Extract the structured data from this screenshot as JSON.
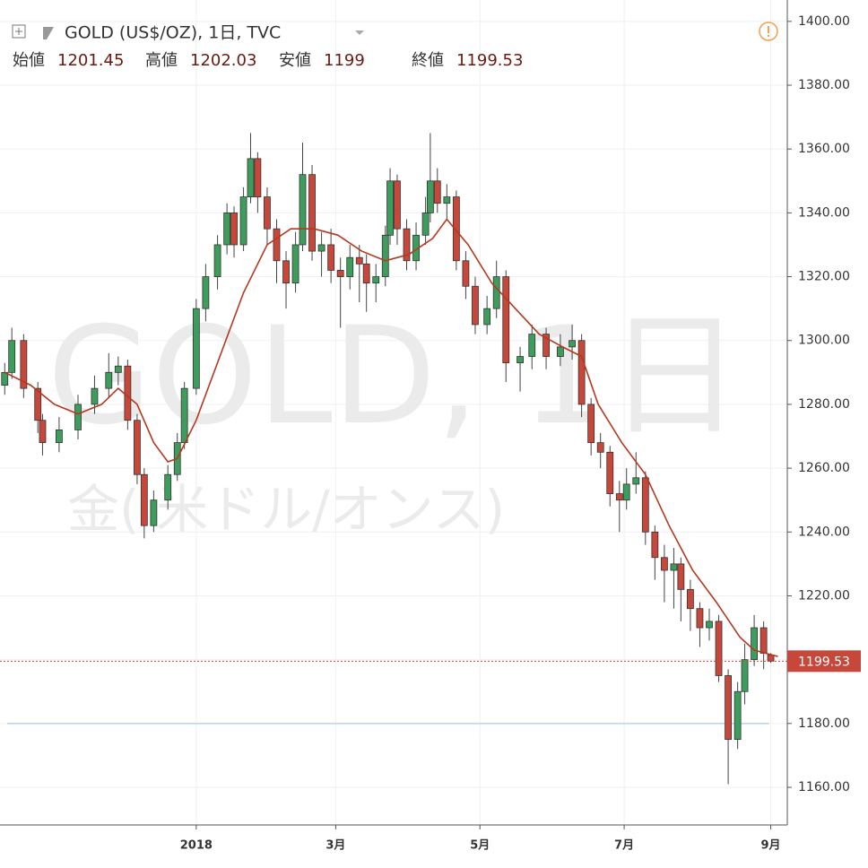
{
  "header": {
    "symbol": "GOLD (US$/OZ), 1日, TVC",
    "labels": [
      "始値",
      "高値",
      "安値",
      "終値"
    ]
  },
  "watermark": {
    "main": "GOLD, 1日",
    "sub": "金( 米ドル/オンス)"
  },
  "chart_data": {
    "type": "candlestick",
    "x": [
      -81,
      -78,
      -73,
      -67,
      -65,
      -58,
      -50,
      -43,
      -37,
      -33,
      -29,
      -25,
      -22,
      -18,
      -12,
      -8,
      -5,
      0,
      4,
      9,
      13,
      16,
      20,
      23,
      26,
      30,
      34,
      38,
      42,
      45,
      49,
      53,
      57,
      61,
      65,
      69,
      72,
      76,
      80,
      82,
      85,
      89,
      93,
      97,
      99,
      102,
      106,
      110,
      114,
      118,
      123,
      127,
      131,
      137,
      142,
      148,
      154,
      159,
      163,
      167,
      171,
      175,
      179,
      182,
      186,
      190,
      194,
      198,
      202,
      205,
      209,
      213,
      217,
      221,
      225,
      229,
      232,
      236,
      240,
      243
    ],
    "open": [
      1286,
      1290,
      1300,
      1285,
      1275,
      1268,
      1272,
      1280,
      1285,
      1290,
      1292,
      1275,
      1258,
      1242,
      1250,
      1258,
      1268,
      1285,
      1310,
      1320,
      1330,
      1340,
      1330,
      1345,
      1357,
      1345,
      1335,
      1325,
      1318,
      1330,
      1352,
      1328,
      1330,
      1322,
      1320,
      1326,
      1324,
      1318,
      1320,
      1333,
      1350,
      1335,
      1325,
      1333,
      1340,
      1350,
      1343,
      1345,
      1325,
      1317,
      1305,
      1310,
      1320,
      1293,
      1295,
      1302,
      1295,
      1298,
      1300,
      1280,
      1268,
      1265,
      1252,
      1250,
      1255,
      1257,
      1240,
      1232,
      1228,
      1230,
      1222,
      1216,
      1210,
      1212,
      1195,
      1175,
      1190,
      1200,
      1210,
      1201.45
    ],
    "high": [
      1293,
      1304,
      1302,
      1287,
      1277,
      1276,
      1283,
      1289,
      1296,
      1295,
      1294,
      1277,
      1260,
      1253,
      1261,
      1271,
      1287,
      1313,
      1324,
      1333,
      1343,
      1342,
      1348,
      1365,
      1359,
      1348,
      1338,
      1328,
      1334,
      1362,
      1355,
      1334,
      1335,
      1326,
      1330,
      1330,
      1327,
      1324,
      1336,
      1354,
      1352,
      1338,
      1337,
      1345,
      1365,
      1354,
      1349,
      1347,
      1328,
      1320,
      1314,
      1325,
      1322,
      1298,
      1305,
      1304,
      1302,
      1305,
      1302,
      1282,
      1271,
      1267,
      1256,
      1260,
      1265,
      1259,
      1242,
      1236,
      1235,
      1232,
      1225,
      1218,
      1216,
      1214,
      1197,
      1193,
      1205,
      1214,
      1212,
      1202.03
    ],
    "low": [
      1283,
      1288,
      1282,
      1271,
      1264,
      1265,
      1269,
      1277,
      1282,
      1286,
      1272,
      1255,
      1238,
      1240,
      1247,
      1256,
      1266,
      1283,
      1306,
      1316,
      1327,
      1326,
      1328,
      1343,
      1340,
      1330,
      1318,
      1310,
      1315,
      1328,
      1325,
      1320,
      1318,
      1304,
      1316,
      1312,
      1309,
      1312,
      1317,
      1330,
      1330,
      1322,
      1322,
      1330,
      1337,
      1340,
      1338,
      1322,
      1313,
      1302,
      1302,
      1307,
      1287,
      1284,
      1291,
      1291,
      1292,
      1294,
      1276,
      1264,
      1260,
      1248,
      1240,
      1247,
      1252,
      1236,
      1225,
      1218,
      1216,
      1212,
      1209,
      1204,
      1206,
      1193,
      1161,
      1172,
      1186,
      1198,
      1197,
      1199.0
    ],
    "close": [
      1290,
      1300,
      1285,
      1275,
      1268,
      1272,
      1280,
      1285,
      1290,
      1292,
      1275,
      1258,
      1242,
      1250,
      1258,
      1268,
      1285,
      1310,
      1320,
      1330,
      1340,
      1330,
      1345,
      1357,
      1345,
      1335,
      1325,
      1318,
      1330,
      1352,
      1328,
      1330,
      1322,
      1320,
      1326,
      1324,
      1318,
      1320,
      1333,
      1350,
      1335,
      1325,
      1333,
      1340,
      1350,
      1343,
      1345,
      1325,
      1317,
      1305,
      1310,
      1320,
      1293,
      1295,
      1302,
      1295,
      1298,
      1300,
      1280,
      1268,
      1265,
      1252,
      1250,
      1255,
      1257,
      1240,
      1232,
      1228,
      1230,
      1222,
      1216,
      1210,
      1212,
      1195,
      1175,
      1190,
      1200,
      1210,
      1202,
      1199.53
    ],
    "up_color": "#3e9d5c",
    "down_color": "#c7473a",
    "ma": {
      "color": "#b5391f",
      "x": [
        -81,
        -70,
        -60,
        -50,
        -40,
        -33,
        -25,
        -18,
        -12,
        -8,
        0,
        10,
        20,
        30,
        40,
        50,
        60,
        70,
        80,
        90,
        100,
        106,
        115,
        125,
        135,
        145,
        155,
        163,
        170,
        180,
        190,
        200,
        210,
        220,
        230,
        236,
        246
      ],
      "values": [
        1290,
        1286,
        1280,
        1277,
        1280,
        1285,
        1280,
        1268,
        1262,
        1263,
        1275,
        1295,
        1315,
        1330,
        1335,
        1335,
        1333,
        1328,
        1325,
        1327,
        1332,
        1338,
        1330,
        1318,
        1310,
        1302,
        1298,
        1295,
        1280,
        1268,
        1258,
        1242,
        1228,
        1218,
        1207,
        1203,
        1201
      ]
    },
    "hline": 1180,
    "xlim": [
      -83,
      250
    ],
    "xticks": [
      {
        "value": 0,
        "label": "2018"
      },
      {
        "value": 59,
        "label": "3月"
      },
      {
        "value": 120,
        "label": "5月"
      },
      {
        "value": 181,
        "label": "7月"
      },
      {
        "value": 243,
        "label": "9月"
      }
    ],
    "ylim": [
      1148.2,
      1406.7
    ],
    "yticks": [
      {
        "value": 1160,
        "label": "1160.00"
      },
      {
        "value": 1180,
        "label": "1180.00"
      },
      {
        "value": 1200,
        "label": "1200.00"
      },
      {
        "value": 1220,
        "label": "1220.00"
      },
      {
        "value": 1240,
        "label": "1240.00"
      },
      {
        "value": 1260,
        "label": "1260.00"
      },
      {
        "value": 1280,
        "label": "1280.00"
      },
      {
        "value": 1300,
        "label": "1300.00"
      },
      {
        "value": 1320,
        "label": "1320.00"
      },
      {
        "value": 1340,
        "label": "1340.00"
      },
      {
        "value": 1360,
        "label": "1360.00"
      },
      {
        "value": 1380,
        "label": "1380.00"
      },
      {
        "value": 1400,
        "label": "1400.00"
      }
    ],
    "grid": true
  }
}
